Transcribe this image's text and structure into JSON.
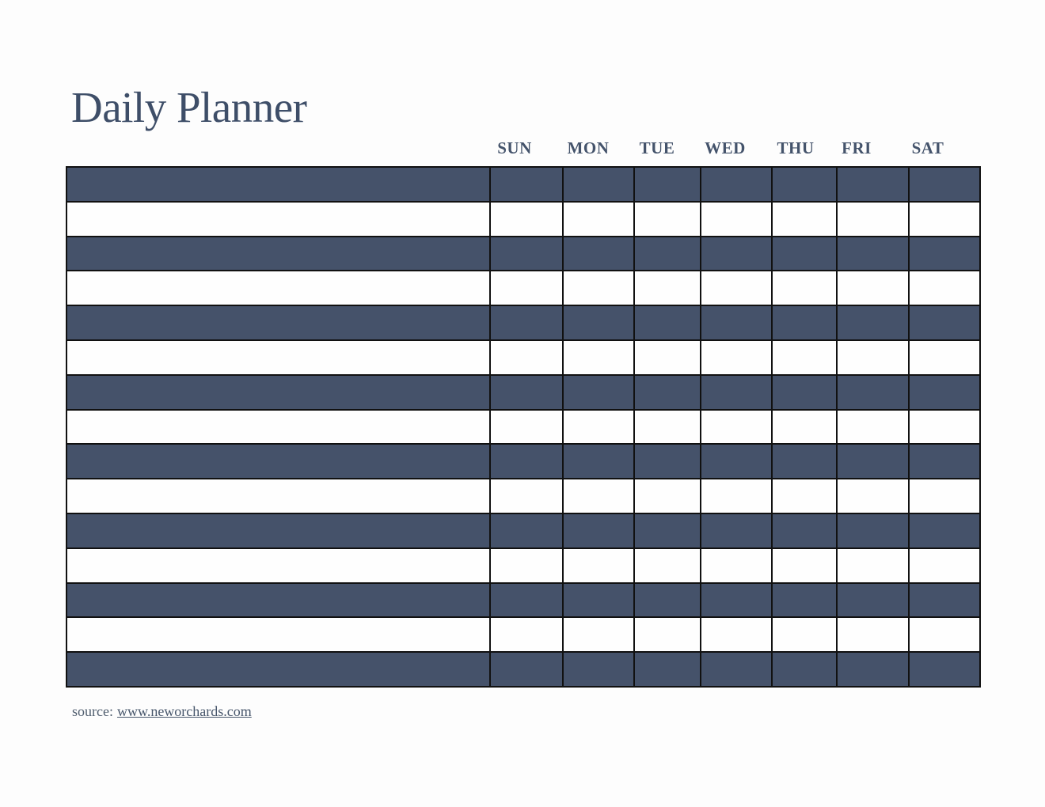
{
  "page": {
    "title": "Daily Planner"
  },
  "planner_table": {
    "day_headers": [
      "SUN",
      "MON",
      "TUE",
      "WED",
      "THU",
      "FRI",
      "SAT"
    ],
    "row_count": 15,
    "column_count": 8,
    "first_row_style": "dark",
    "row_alternation": [
      "dark",
      "light"
    ]
  },
  "footer": {
    "source_label": "source:",
    "source_link_text": "www.neworchards.com"
  },
  "colors": {
    "page_bg": "#FDFDFD",
    "row_dark": "#45526A",
    "row_light": "#FEFEFE",
    "grid_border": "#111111",
    "title_text": "#3E4E68",
    "header_text": "#44536B",
    "source_text": "#4F5D6E",
    "link_text": "#47566B"
  }
}
